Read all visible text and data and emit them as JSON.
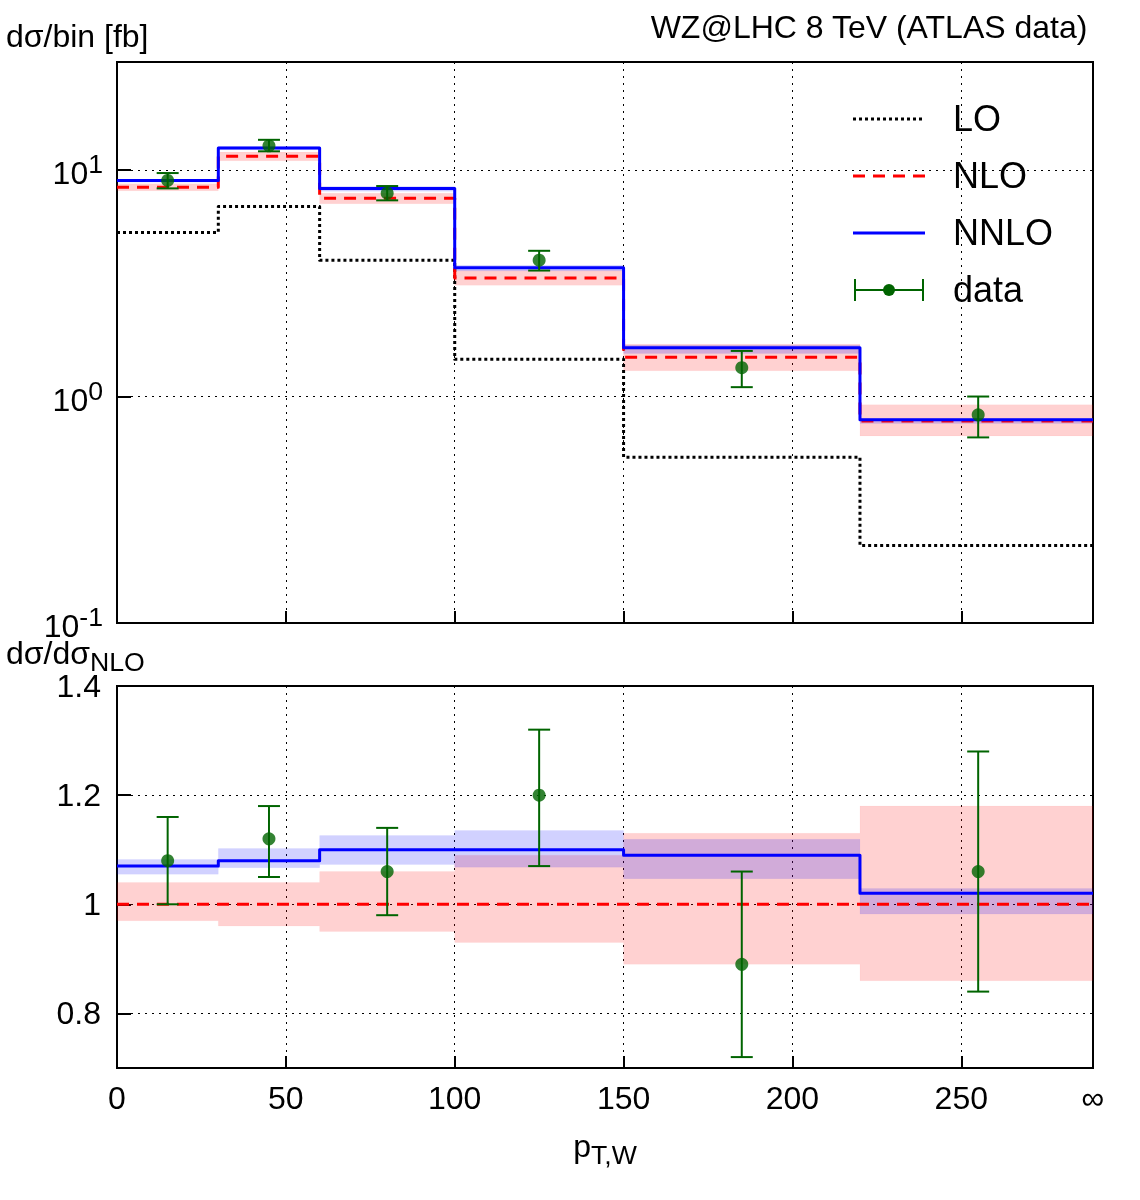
{
  "chart_data": [
    {
      "type": "step",
      "title": "WZ@LHC 8 TeV (ATLAS data)",
      "ylabel": "dσ/bin [fb]",
      "x": [
        0,
        30,
        60,
        100,
        150,
        220,
        289
      ],
      "xlim": [
        0,
        289
      ],
      "xticks": [
        0,
        50,
        100,
        150,
        200,
        250,
        {
          "value": 289,
          "label": null
        }
      ],
      "ylim": [
        0.1,
        30
      ],
      "yticks": [
        {
          "value": 0.1,
          "label": "10$^{-1}$"
        },
        {
          "value": 1,
          "label": "10$^{0}$"
        },
        {
          "value": 10,
          "label": "10$^{1}$"
        }
      ],
      "log": true,
      "grid": true,
      "legend": "top right",
      "tick_labels": "y",
      "series": [
        {
          "name": "LO",
          "type": "step",
          "color": "#000000",
          "line_style": "dotted",
          "marker": "none",
          "values": [
            5.3,
            6.9,
            4.0,
            1.46,
            0.54,
            0.22,
            0.22
          ]
        },
        {
          "name": "NLO",
          "type": "step",
          "color": "#ff0000",
          "line_style": "dashed",
          "marker": "none",
          "values": [
            8.4,
            11.5,
            7.5,
            3.34,
            1.49,
            0.78,
            0.78
          ],
          "lower": [
            8.1,
            11.0,
            7.1,
            3.1,
            1.3,
            0.67,
            0.67
          ],
          "upper": [
            8.7,
            12.0,
            7.9,
            3.6,
            1.7,
            0.92,
            0.92
          ]
        },
        {
          "name": "NNLO",
          "type": "step",
          "color": "#0000ff",
          "line_style": "solid",
          "marker": "none",
          "values": [
            9.0,
            12.5,
            8.3,
            3.7,
            1.64,
            0.79,
            0.79
          ],
          "lower": [
            8.84,
            12.3,
            8.06,
            3.58,
            1.55,
            0.76,
            0.76
          ],
          "upper": [
            9.07,
            12.7,
            8.47,
            3.8,
            1.69,
            0.8,
            0.8
          ]
        },
        {
          "name": "data",
          "type": "scatter",
          "color": "#006400",
          "marker": "circle",
          "x": [
            15,
            45,
            80,
            125,
            185,
            255
          ],
          "values": [
            9.0,
            12.8,
            7.9,
            4.0,
            1.34,
            0.83
          ],
          "errors": [
            [
              8.3,
              9.7
            ],
            [
              12.1,
              13.6
            ],
            [
              7.35,
              8.5
            ],
            [
              3.6,
              4.4
            ],
            [
              1.1,
              1.59
            ],
            [
              0.66,
              1.0
            ]
          ]
        }
      ]
    },
    {
      "type": "step",
      "ylabel": "dσ/dσ$_{NLO}$",
      "xlabel": "p$_{T,W}$",
      "x": [
        0,
        30,
        60,
        100,
        150,
        220,
        289
      ],
      "xlim": [
        0,
        289
      ],
      "xticks": [
        0,
        50,
        100,
        150,
        200,
        250,
        {
          "value": 289,
          "label": "∞"
        }
      ],
      "ylim": [
        0.7,
        1.4
      ],
      "yticks": [
        0.8,
        1,
        1.2,
        1.4
      ],
      "grid": true,
      "series": [
        {
          "type": "step",
          "color": "#ff0000",
          "line_style": "dashed",
          "marker": "none",
          "values": [
            1,
            1,
            1,
            1,
            1,
            1,
            1
          ],
          "lower": [
            0.97,
            0.96,
            0.95,
            0.93,
            0.89,
            0.86,
            0.86
          ],
          "upper": [
            1.04,
            1.04,
            1.06,
            1.09,
            1.13,
            1.18,
            1.18
          ]
        },
        {
          "type": "step",
          "color": "#0000ff",
          "line_style": "solid",
          "marker": "none",
          "values": [
            1.07,
            1.08,
            1.1,
            1.1,
            1.09,
            1.02,
            1.02
          ],
          "lower": [
            1.055,
            1.067,
            1.073,
            1.068,
            1.047,
            0.982,
            0.982
          ],
          "upper": [
            1.082,
            1.102,
            1.126,
            1.135,
            1.119,
            1.029,
            1.029
          ]
        },
        {
          "type": "scatter",
          "color": "#006400",
          "marker": "circle",
          "x": [
            15,
            45,
            80,
            125,
            185,
            255
          ],
          "values": [
            1.08,
            1.12,
            1.06,
            1.2,
            0.89,
            1.06
          ],
          "errors": [
            [
              1.0,
              1.16
            ],
            [
              1.05,
              1.18
            ],
            [
              0.98,
              1.14
            ],
            [
              1.07,
              1.32
            ],
            [
              0.72,
              1.06
            ],
            [
              0.84,
              1.28
            ]
          ]
        }
      ]
    }
  ]
}
